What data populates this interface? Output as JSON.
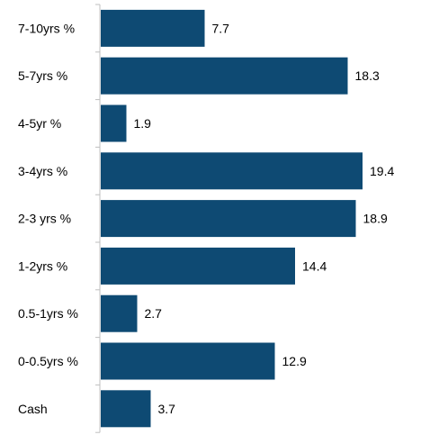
{
  "chart_data": {
    "type": "bar",
    "orientation": "horizontal",
    "categories": [
      "7-10yrs %",
      "5-7yrs %",
      "4-5yr %",
      "3-4yrs %",
      "2-3 yrs %",
      "1-2yrs %",
      "0.5-1yrs %",
      "0-0.5yrs %",
      "Cash"
    ],
    "values": [
      7.7,
      18.3,
      1.9,
      19.4,
      18.9,
      14.4,
      2.7,
      12.9,
      3.7
    ],
    "value_labels": [
      "7.7",
      "18.3",
      "1.9",
      "19.4",
      "18.9",
      "14.4",
      "2.7",
      "12.9",
      "3.7"
    ],
    "title": "",
    "xlabel": "",
    "ylabel": "",
    "xlim": [
      0,
      24
    ],
    "grid": false,
    "bar_color": "#0e4a73",
    "axis_color": "#bfbfbf"
  }
}
